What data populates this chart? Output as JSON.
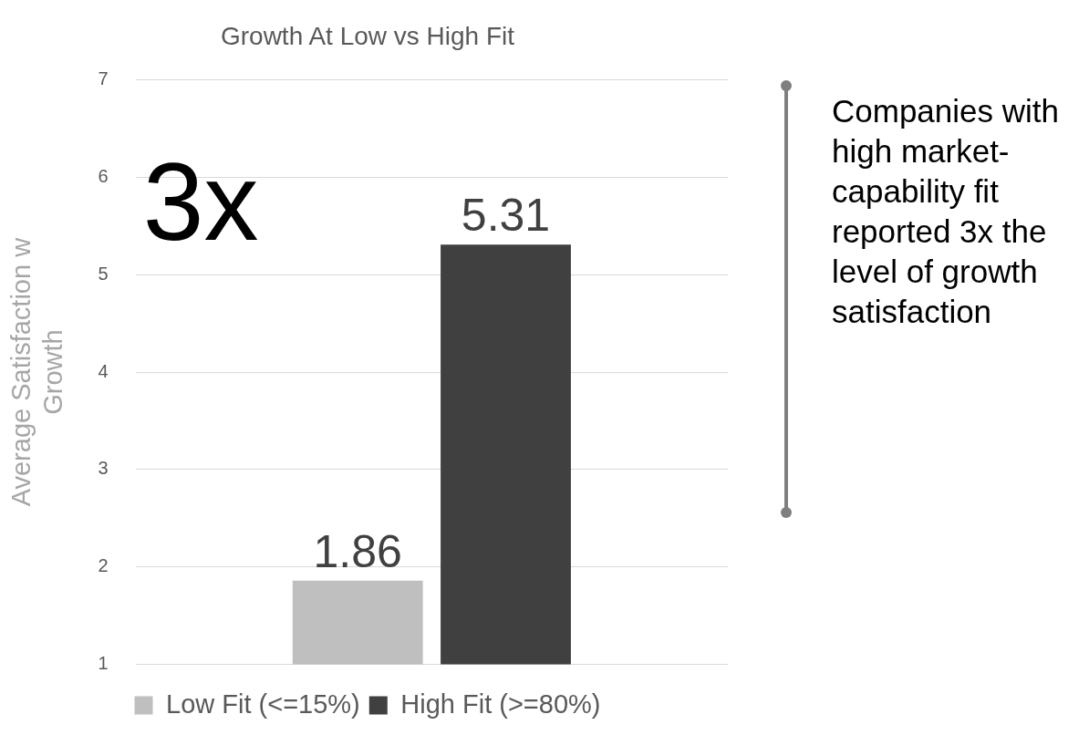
{
  "chart_data": {
    "type": "bar",
    "title": "Growth At Low vs High Fit",
    "ylabel": "Average Satisfaction w Growth",
    "categories": [
      null
    ],
    "series": [
      {
        "name": "Low Fit (<=15%)",
        "color": "#bfbfbf",
        "values": [
          1.86
        ]
      },
      {
        "name": "High Fit (>=80%)",
        "color": "#404040",
        "values": [
          5.31
        ]
      }
    ],
    "ylim": [
      1,
      7
    ],
    "yticks": [
      1,
      2,
      3,
      4,
      5,
      6,
      7
    ],
    "grid": "y",
    "legend": "bottom",
    "data_labels": true,
    "annotations": [
      "3x",
      "Companies with high market-capability fit reported 3x the level of growth satisfaction"
    ]
  }
}
